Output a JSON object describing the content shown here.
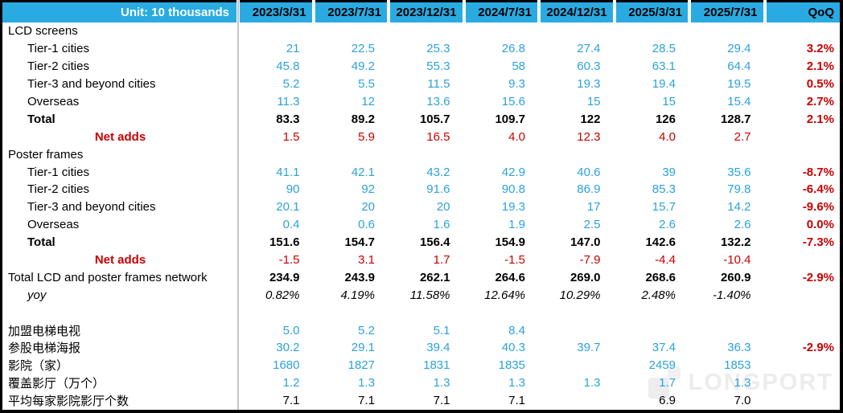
{
  "watermark": {
    "text": "LONGPORT"
  },
  "colors": {
    "header_bg": "#29ABE2",
    "header_unit_text": "#FFFFFF",
    "value_blue": "#2BA2DB",
    "alert_red": "#C90000",
    "divider_gray": "#C4C4C4",
    "border_black": "#000000"
  },
  "table": {
    "unit_label": "Unit: 10 thousands",
    "columns": [
      "2023/3/31",
      "2023/7/31",
      "2023/12/31",
      "2024/7/31",
      "2024/12/31",
      "2025/3/31",
      "2025/7/31",
      "QoQ"
    ],
    "rows": [
      {
        "type": "section",
        "label": "LCD screens",
        "values": [
          "",
          "",
          "",
          "",
          "",
          "",
          ""
        ],
        "qoq": ""
      },
      {
        "type": "tier",
        "label": "Tier-1 cities",
        "values": [
          "21",
          "22.5",
          "25.3",
          "26.8",
          "27.4",
          "28.5",
          "29.4"
        ],
        "qoq": "3.2%"
      },
      {
        "type": "tier",
        "label": "Tier-2 cities",
        "values": [
          "45.8",
          "49.2",
          "55.3",
          "58",
          "60.3",
          "63.1",
          "64.4"
        ],
        "qoq": "2.1%"
      },
      {
        "type": "tier",
        "label": "Tier-3 and beyond cities",
        "values": [
          "5.2",
          "5.5",
          "11.5",
          "9.3",
          "19.3",
          "19.4",
          "19.5"
        ],
        "qoq": "0.5%"
      },
      {
        "type": "tier",
        "label": "Overseas",
        "values": [
          "11.3",
          "12",
          "13.6",
          "15.6",
          "15",
          "15",
          "15.4"
        ],
        "qoq": "2.7%"
      },
      {
        "type": "total",
        "label": "Total",
        "values": [
          "83.3",
          "89.2",
          "105.7",
          "109.7",
          "122",
          "126",
          "128.7"
        ],
        "qoq": "2.1%"
      },
      {
        "type": "net",
        "label": "Net adds",
        "values": [
          "1.5",
          "5.9",
          "16.5",
          "4.0",
          "12.3",
          "4.0",
          "2.7"
        ],
        "qoq": ""
      },
      {
        "type": "section",
        "label": "Poster frames",
        "values": [
          "",
          "",
          "",
          "",
          "",
          "",
          ""
        ],
        "qoq": ""
      },
      {
        "type": "tier",
        "label": "Tier-1 cities",
        "values": [
          "41.1",
          "42.1",
          "43.2",
          "42.9",
          "40.6",
          "39",
          "35.6"
        ],
        "qoq": "-8.7%"
      },
      {
        "type": "tier",
        "label": "Tier-2 cities",
        "values": [
          "90",
          "92",
          "91.6",
          "90.8",
          "86.9",
          "85.3",
          "79.8"
        ],
        "qoq": "-6.4%"
      },
      {
        "type": "tier",
        "label": "Tier-3 and beyond cities",
        "values": [
          "20.1",
          "20",
          "20",
          "19.3",
          "17",
          "15.7",
          "14.2"
        ],
        "qoq": "-9.6%"
      },
      {
        "type": "tier",
        "label": "Overseas",
        "values": [
          "0.4",
          "0.6",
          "1.6",
          "1.9",
          "2.5",
          "2.6",
          "2.6"
        ],
        "qoq": "0.0%"
      },
      {
        "type": "total",
        "label": "Total",
        "values": [
          "151.6",
          "154.7",
          "156.4",
          "154.9",
          "147.0",
          "142.6",
          "132.2"
        ],
        "qoq": "-7.3%"
      },
      {
        "type": "net",
        "label": "Net adds",
        "values": [
          "-1.5",
          "3.1",
          "1.7",
          "-1.5",
          "-7.9",
          "-4.4",
          "-10.4"
        ],
        "qoq": ""
      },
      {
        "type": "network",
        "label": "Total LCD and poster  frames network",
        "values": [
          "234.9",
          "243.9",
          "262.1",
          "264.6",
          "269.0",
          "268.6",
          "260.9"
        ],
        "qoq": "-2.9%"
      },
      {
        "type": "yoy",
        "label": "yoy",
        "values": [
          "0.82%",
          "4.19%",
          "11.58%",
          "12.64%",
          "10.29%",
          "2.48%",
          "-1.40%"
        ],
        "qoq": ""
      },
      {
        "type": "spacer",
        "label": "",
        "values": [
          "",
          "",
          "",
          "",
          "",
          "",
          ""
        ],
        "qoq": ""
      },
      {
        "type": "cn",
        "label": "加盟电梯电视",
        "values": [
          "5.0",
          "5.2",
          "5.1",
          "8.4",
          "",
          "",
          ""
        ],
        "qoq": ""
      },
      {
        "type": "cn",
        "label": "参股电梯海报",
        "values": [
          "30.2",
          "29.1",
          "39.4",
          "40.3",
          "39.7",
          "37.4",
          "36.3"
        ],
        "qoq": "-2.9%"
      },
      {
        "type": "cn",
        "label": "影院（家）",
        "values": [
          "1680",
          "1827",
          "1831",
          "1835",
          "",
          "2459",
          "1853"
        ],
        "qoq": ""
      },
      {
        "type": "cn",
        "label": "覆盖影厅（万个）",
        "values": [
          "1.2",
          "1.3",
          "1.3",
          "1.3",
          "1.3",
          "1.7",
          "1.3"
        ],
        "qoq": ""
      },
      {
        "type": "cnblack",
        "label": "平均每家影院影厅个数",
        "values": [
          "7.1",
          "7.1",
          "7.1",
          "7.1",
          "",
          "6.9",
          "7.0"
        ],
        "qoq": ""
      }
    ]
  },
  "chart_data": {
    "type": "table",
    "title": "Unit: 10 thousands",
    "columns": [
      "Row",
      "2023/3/31",
      "2023/7/31",
      "2023/12/31",
      "2024/7/31",
      "2024/12/31",
      "2025/3/31",
      "2025/7/31",
      "QoQ"
    ],
    "rows": [
      [
        "LCD screens / Tier-1 cities",
        21,
        22.5,
        25.3,
        26.8,
        27.4,
        28.5,
        29.4,
        "3.2%"
      ],
      [
        "LCD screens / Tier-2 cities",
        45.8,
        49.2,
        55.3,
        58,
        60.3,
        63.1,
        64.4,
        "2.1%"
      ],
      [
        "LCD screens / Tier-3 and beyond cities",
        5.2,
        5.5,
        11.5,
        9.3,
        19.3,
        19.4,
        19.5,
        "0.5%"
      ],
      [
        "LCD screens / Overseas",
        11.3,
        12,
        13.6,
        15.6,
        15,
        15,
        15.4,
        "2.7%"
      ],
      [
        "LCD screens / Total",
        83.3,
        89.2,
        105.7,
        109.7,
        122,
        126,
        128.7,
        "2.1%"
      ],
      [
        "LCD screens / Net adds",
        1.5,
        5.9,
        16.5,
        4.0,
        12.3,
        4.0,
        2.7,
        ""
      ],
      [
        "Poster frames / Tier-1 cities",
        41.1,
        42.1,
        43.2,
        42.9,
        40.6,
        39,
        35.6,
        "-8.7%"
      ],
      [
        "Poster frames / Tier-2 cities",
        90,
        92,
        91.6,
        90.8,
        86.9,
        85.3,
        79.8,
        "-6.4%"
      ],
      [
        "Poster frames / Tier-3 and beyond cities",
        20.1,
        20,
        20,
        19.3,
        17,
        15.7,
        14.2,
        "-9.6%"
      ],
      [
        "Poster frames / Overseas",
        0.4,
        0.6,
        1.6,
        1.9,
        2.5,
        2.6,
        2.6,
        "0.0%"
      ],
      [
        "Poster frames / Total",
        151.6,
        154.7,
        156.4,
        154.9,
        147.0,
        142.6,
        132.2,
        "-7.3%"
      ],
      [
        "Poster frames / Net adds",
        -1.5,
        3.1,
        1.7,
        -1.5,
        -7.9,
        -4.4,
        -10.4,
        ""
      ],
      [
        "Total LCD and poster frames network",
        234.9,
        243.9,
        262.1,
        264.6,
        269.0,
        268.6,
        260.9,
        "-2.9%"
      ],
      [
        "yoy",
        "0.82%",
        "4.19%",
        "11.58%",
        "12.64%",
        "10.29%",
        "2.48%",
        "-1.40%",
        ""
      ],
      [
        "加盟电梯电视",
        5.0,
        5.2,
        5.1,
        8.4,
        "",
        "",
        "",
        ""
      ],
      [
        "参股电梯海报",
        30.2,
        29.1,
        39.4,
        40.3,
        39.7,
        37.4,
        36.3,
        "-2.9%"
      ],
      [
        "影院（家）",
        1680,
        1827,
        1831,
        1835,
        "",
        2459,
        1853,
        ""
      ],
      [
        "覆盖影厅（万个）",
        1.2,
        1.3,
        1.3,
        1.3,
        1.3,
        1.7,
        1.3,
        ""
      ],
      [
        "平均每家影院影厅个数",
        7.1,
        7.1,
        7.1,
        7.1,
        "",
        6.9,
        7.0,
        ""
      ]
    ]
  }
}
